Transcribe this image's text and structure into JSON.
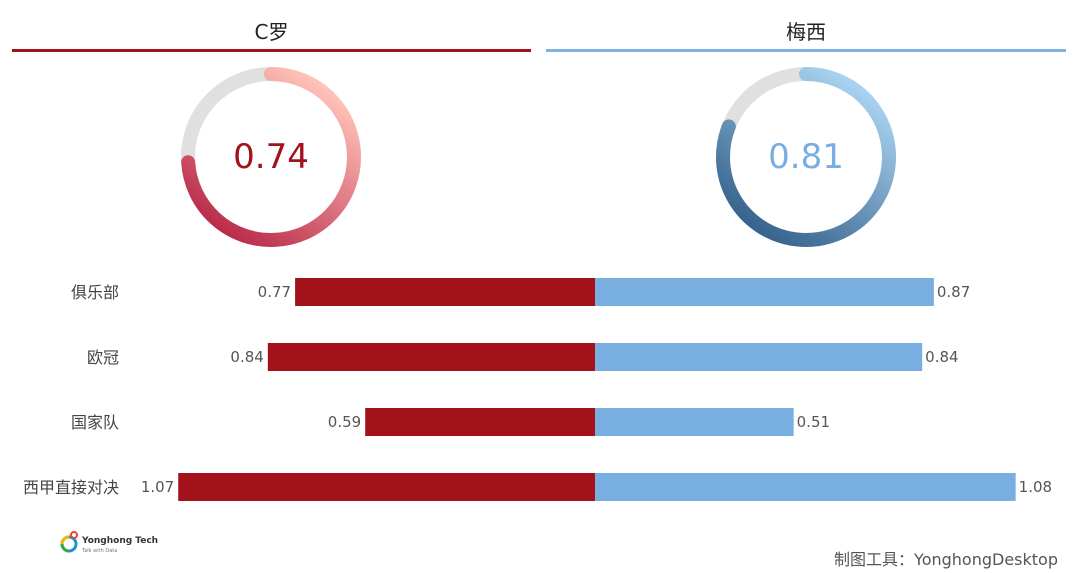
{
  "players": {
    "left": {
      "name": "C罗",
      "overall": 0.74,
      "overall_label": "0.74",
      "color": "#a3111b",
      "gauge_gradient": [
        "#b0153a",
        "#ffc2b8"
      ]
    },
    "right": {
      "name": "梅西",
      "overall": 0.81,
      "overall_label": "0.81",
      "color": "#78aee0",
      "gauge_gradient": [
        "#25527e",
        "#a8d2ef"
      ]
    }
  },
  "chart_data": {
    "type": "bar",
    "orientation": "horizontal-diverging",
    "categories": [
      "俱乐部",
      "欧冠",
      "国家队",
      "西甲直接对决"
    ],
    "series": [
      {
        "name": "C罗",
        "values": [
          0.77,
          0.84,
          0.59,
          1.07
        ],
        "labels": [
          "0.77",
          "0.84",
          "0.59",
          "1.07"
        ],
        "color": "#a3111b"
      },
      {
        "name": "梅西",
        "values": [
          0.87,
          0.84,
          0.51,
          1.08
        ],
        "labels": [
          "0.87",
          "0.84",
          "0.51",
          "1.08"
        ],
        "color": "#78aee0"
      }
    ]
  },
  "logo": {
    "name": "Yonghong Tech",
    "tagline": "Talk with Data"
  },
  "credit": "制图工具：YonghongDesktop"
}
